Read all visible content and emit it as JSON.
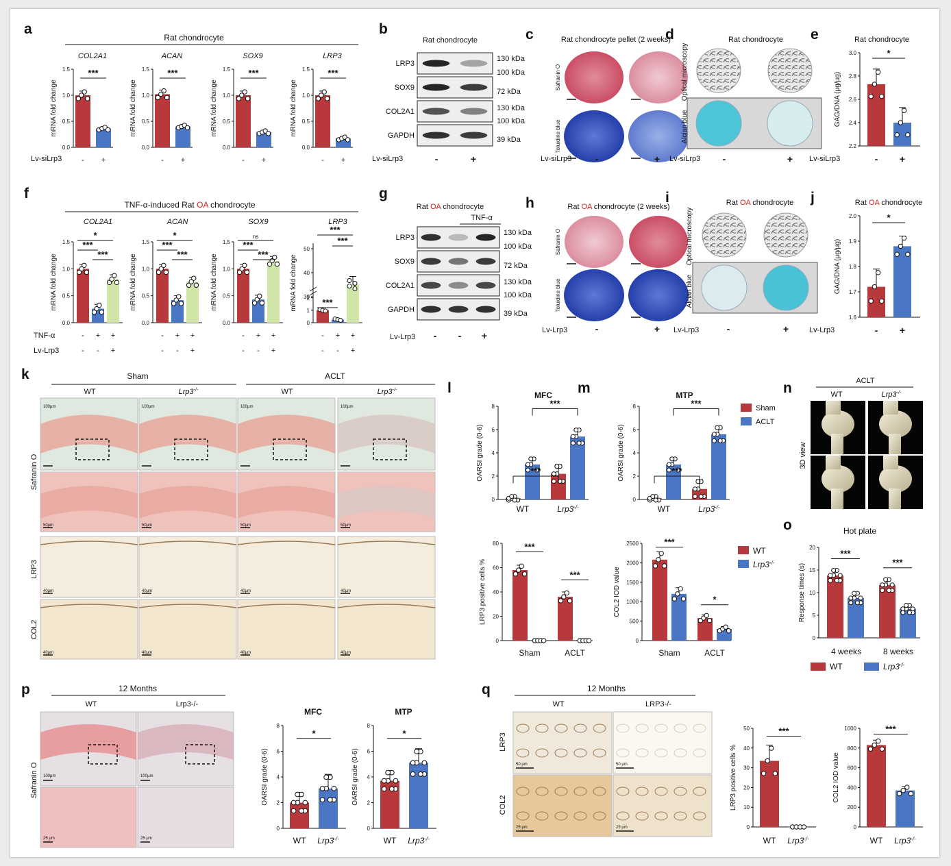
{
  "colors": {
    "red": "#b8393c",
    "blue": "#4a76c4",
    "green": "#cfe6a8",
    "wt": "#b8393c",
    "ko": "#4a76c4",
    "oa": "#d21f1f"
  },
  "panel_letters": [
    "a",
    "b",
    "c",
    "d",
    "e",
    "f",
    "g",
    "h",
    "i",
    "j",
    "k",
    "l",
    "m",
    "n",
    "o",
    "p",
    "q"
  ],
  "common": {
    "mrna_ylabel": "mRNA fold change",
    "kda_130": "130 kDa",
    "kda_100": "100 kDa",
    "kda_72": "72 kDa",
    "kda_39": "39 kDa"
  },
  "panel_a": {
    "title": "Rat chondrocyte",
    "treat_label": "Lv-siLrp3",
    "genes": [
      "COL2A1",
      "ACAN",
      "SOX9",
      "LRP3"
    ],
    "signs": [
      "-",
      "+"
    ],
    "sig": [
      "***",
      "***",
      "***",
      "***"
    ],
    "yticks": [
      "0.0",
      "0.5",
      "1.0",
      "1.5"
    ],
    "values": [
      [
        1.0,
        0.36
      ],
      [
        1.02,
        0.4
      ],
      [
        1.0,
        0.29
      ],
      [
        1.0,
        0.17
      ]
    ]
  },
  "panel_b": {
    "title": "Rat chondrocyte",
    "treat_label": "Lv-siLrp3",
    "proteins": [
      "LRP3",
      "SOX9",
      "COL2A1",
      "GAPDH"
    ],
    "signs": [
      "-",
      "+"
    ]
  },
  "panel_c": {
    "title": "Rat chondrocyte pellet (2 weeks)",
    "row_labels": [
      "Safranin O",
      "Toluidine blue"
    ],
    "treat_label": "Lv-siLrp3",
    "signs": [
      "-",
      "+"
    ]
  },
  "panel_d": {
    "title": "Rat chondrocyte",
    "row_labels": [
      "Optical microscopy",
      "Alcian blue"
    ],
    "treat_label": "Lv-siLrp3",
    "signs": [
      "-",
      "+"
    ]
  },
  "panel_e": {
    "title": "Rat chondrocyte",
    "ylabel": "GAG/DNA (μg/μg)",
    "yticks": [
      "2.2",
      "2.4",
      "2.6",
      "2.8",
      "3.0"
    ],
    "values": [
      2.73,
      2.4
    ],
    "sig": "*",
    "treat_label": "Lv-siLrp3",
    "signs": [
      "-",
      "+"
    ]
  },
  "panel_f": {
    "title_pre": "TNF-α-induced Rat ",
    "title_oa": "OA",
    "title_post": " chondrocyte",
    "genes": [
      "COL2A1",
      "ACAN",
      "SOX9",
      "LRP3"
    ],
    "row_labels": [
      "TNF-α",
      "Lv-Lrp3"
    ],
    "signs_tnf": [
      "-",
      "+",
      "+"
    ],
    "signs_lrp": [
      "-",
      "-",
      "+"
    ],
    "yticks": [
      "0.0",
      "0.5",
      "1.0",
      "1.5"
    ],
    "yticks_lrp3_low": [
      "0",
      "1",
      "2"
    ],
    "yticks_lrp3_high": [
      "30",
      "40",
      "50"
    ],
    "values": [
      [
        1.0,
        0.26,
        0.81
      ],
      [
        1.0,
        0.42,
        0.76
      ],
      [
        1.0,
        0.43,
        1.15
      ],
      [
        1.0,
        0.25,
        35.0
      ]
    ],
    "sig": [
      [
        "***",
        "***",
        "*"
      ],
      [
        "***",
        "***",
        "*"
      ],
      [
        "***",
        "***",
        "ns"
      ],
      [
        "***",
        "***",
        "***"
      ]
    ]
  },
  "panel_g": {
    "title_pre": "Rat ",
    "title_oa": "OA",
    "title_post": " chondrocyte",
    "tnf_label": "TNF-α",
    "proteins": [
      "LRP3",
      "SOX9",
      "COL2A1",
      "GAPDH"
    ],
    "treat_label": "Lv-Lrp3",
    "signs": [
      "-",
      "-",
      "+"
    ]
  },
  "panel_h": {
    "title_pre": "Rat ",
    "title_oa": "OA",
    "title_post": " chondrocyte (2 weeks)",
    "row_labels": [
      "Safranin O",
      "Toluidine blue"
    ],
    "treat_label": "Lv-Lrp3",
    "signs": [
      "-",
      "+"
    ]
  },
  "panel_i": {
    "title_pre": "Rat ",
    "title_oa": "OA",
    "title_post": " chondrocyte",
    "row_labels": [
      "Optical microscopy",
      "Alcian blue"
    ],
    "treat_label": "Lv-Lrp3",
    "signs": [
      "-",
      "+"
    ]
  },
  "panel_j": {
    "title_pre": "Rat ",
    "title_oa": "OA",
    "title_post": " chondrocyte",
    "ylabel": "GAG/DNA (μg/μg)",
    "yticks": [
      "1.6",
      "1.7",
      "1.8",
      "1.9",
      "2.0"
    ],
    "values": [
      1.72,
      1.88
    ],
    "sig": "*",
    "treat_label": "Lv-Lrp3",
    "signs": [
      "-",
      "+"
    ]
  },
  "panel_k": {
    "groups": [
      "Sham",
      "ACLT"
    ],
    "genotypes": [
      "WT",
      "Lrp3",
      "WT",
      "Lrp3"
    ],
    "ko_sup": "-/-",
    "row_labels": [
      "Safranin O",
      "LRP3",
      "COL2"
    ],
    "scale_labels": [
      "100μm",
      "50μm",
      "40μm",
      "40μm"
    ]
  },
  "panel_l": {
    "charts": [
      {
        "title": "MFC",
        "values": [
          [
            0.1,
            3.0
          ],
          [
            2.2,
            5.4
          ]
        ]
      },
      {
        "title": "MTP",
        "values": [
          [
            0.1,
            3.0
          ],
          [
            0.9,
            5.6
          ]
        ]
      }
    ],
    "ylabel": "OARSI grade (0-6)",
    "yticks": [
      "0",
      "2",
      "4",
      "6",
      "8"
    ],
    "legend": [
      "Sham",
      "ACLT"
    ],
    "x": [
      "WT",
      "Lrp3"
    ],
    "ko_sup": "-/-",
    "sig": "***"
  },
  "panel_m": {
    "left": {
      "ylabel": "LRP3 positive cells %",
      "yticks": [
        "0",
        "20",
        "40",
        "60",
        "80"
      ],
      "x": [
        "Sham",
        "ACLT"
      ],
      "values": [
        [
          58,
          0
        ],
        [
          36,
          0
        ]
      ],
      "sig": [
        "***",
        "***"
      ]
    },
    "right": {
      "ylabel": "COL2 IOD value",
      "yticks": [
        "0",
        "500",
        "1000",
        "1500",
        "2000",
        "2500"
      ],
      "x": [
        "Sham",
        "ACLT"
      ],
      "values": [
        [
          2080,
          1200
        ],
        [
          580,
          300
        ]
      ],
      "sig": [
        "***",
        "*"
      ]
    },
    "legend": [
      "WT",
      "Lrp3"
    ],
    "ko_sup": "-/-"
  },
  "panel_n": {
    "title": "ACLT",
    "genotypes": [
      "WT",
      "Lrp3"
    ],
    "ko_sup": "-/-",
    "row_label": "3D view"
  },
  "panel_o": {
    "title": "Hot plate",
    "ylabel": "Response times (s)",
    "yticks": [
      "0",
      "5",
      "10",
      "15",
      "20"
    ],
    "x": [
      "4 weeks",
      "8 weeks"
    ],
    "values": [
      [
        13.8,
        8.8
      ],
      [
        11.7,
        6.4
      ]
    ],
    "sig": [
      "***",
      "***"
    ],
    "legend": [
      "WT",
      "Lrp3"
    ],
    "ko_sup": "-/-"
  },
  "panel_p": {
    "title": "12 Months",
    "genotypes": [
      "WT",
      "Lrp3-/-"
    ],
    "row_label": "Safranin O",
    "scale_labels": [
      "100μm",
      "25 μm"
    ],
    "charts": [
      {
        "title": "MFC",
        "values": [
          2.0,
          3.1
        ],
        "sig": "*"
      },
      {
        "title": "MTP",
        "values": [
          3.7,
          5.1
        ],
        "sig": "*"
      }
    ],
    "ylabel": "OARSI grade (0-6)",
    "yticks": [
      "0",
      "2",
      "4",
      "6",
      "8"
    ],
    "x": [
      "WT",
      "Lrp3"
    ],
    "ko_sup": "-/-"
  },
  "panel_q": {
    "title": "12 Months",
    "genotypes": [
      "WT",
      "LRP3-/-"
    ],
    "row_labels": [
      "LRP3",
      "COL2"
    ],
    "scale_labels": [
      "50 μm",
      "25 μm"
    ],
    "left": {
      "ylabel": "LRP3 positive cells %",
      "yticks": [
        "0",
        "10",
        "20",
        "30",
        "40",
        "50"
      ],
      "values": [
        33.5,
        0
      ],
      "sig": "***"
    },
    "right": {
      "ylabel": "COL2 IOD value",
      "yticks": [
        "0",
        "200",
        "400",
        "600",
        "800",
        "1000"
      ],
      "values": [
        830,
        370
      ],
      "sig": "***"
    },
    "x": [
      "WT",
      "Lrp3"
    ],
    "ko_sup": "-/-"
  }
}
